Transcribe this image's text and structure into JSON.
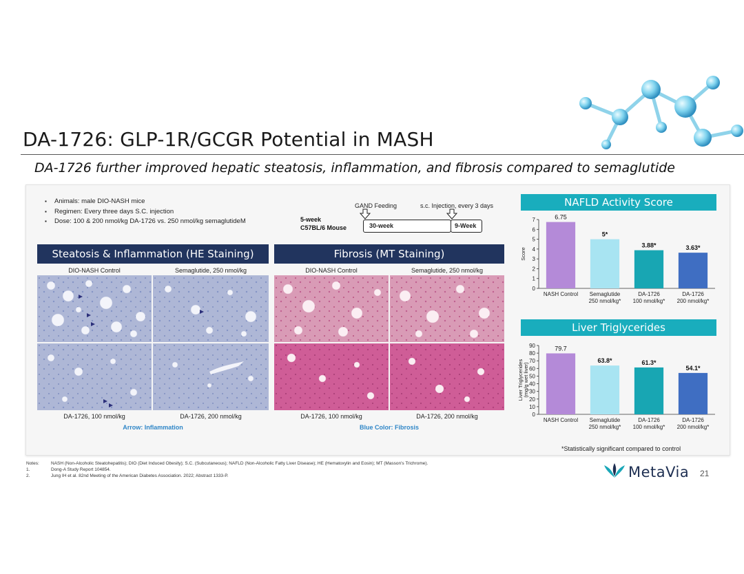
{
  "title": "DA-1726: GLP-1R/GCGR Potential in MASH",
  "subtitle": "DA-1726 further improved hepatic steatosis, inflammation, and fibrosis compared to semaglutide",
  "study_bullets": [
    "Animals: male DIO-NASH mice",
    "Regimen: Every three days S.C. injection",
    "Dose: 100 & 200 nmol/kg DA-1726 vs. 250 nmol/kg semaglutideM"
  ],
  "timeline": {
    "gand_feeding": "GAND Feeding",
    "injection": "s.c. Injection, every 3 days",
    "mouse_line1": "5-week",
    "mouse_line2": "C57BL/6 Mouse",
    "phase1": "30-week",
    "phase2": "9-Week"
  },
  "he_panel": {
    "header": "Steatosis & Inflammation (HE Staining)",
    "labels": [
      "DIO-NASH Control",
      "Semaglutide, 250 nmol/kg",
      "DA-1726, 100 nmol/kg",
      "DA-1726, 200 nmol/kg"
    ],
    "note": "Arrow: Inflammation"
  },
  "mt_panel": {
    "header": "Fibrosis (MT Staining)",
    "labels": [
      "DIO-NASH Control",
      "Semaglutide, 250 nmol/kg",
      "DA-1726, 100 nmol/kg",
      "DA-1726, 200 nmol/kg"
    ],
    "note": "Blue Color: Fibrosis"
  },
  "chart_data": [
    {
      "type": "bar",
      "title": "NAFLD Activity Score",
      "ylabel": "Score",
      "ylim": [
        0,
        7
      ],
      "yticks": [
        0,
        1,
        2,
        3,
        4,
        5,
        6,
        7
      ],
      "categories": [
        [
          "NASH Control"
        ],
        [
          "Semaglutide",
          "250 nmol/kg*"
        ],
        [
          "DA-1726",
          "100 nmol/kg*"
        ],
        [
          "DA-1726",
          "200 nmol/kg*"
        ]
      ],
      "values": [
        6.75,
        5,
        3.88,
        3.63
      ],
      "value_labels": [
        "6.75",
        "5*",
        "3.88*",
        "3.63*"
      ],
      "colors": [
        "#b48ad8",
        "#a8e4f2",
        "#18a6b3",
        "#3f6ec2"
      ],
      "grid": false
    },
    {
      "type": "bar",
      "title": "Liver Triglycerides",
      "ylabel": "Liver Triglycerides (mg/g wet liver)",
      "ylabel_lines": [
        "Liver Triglycerides",
        "(mg/g wet liver)"
      ],
      "ylim": [
        0,
        90
      ],
      "yticks": [
        0,
        10,
        20,
        30,
        40,
        50,
        60,
        70,
        80,
        90
      ],
      "categories": [
        [
          "NASH Control"
        ],
        [
          "Semaglutide",
          "250 nmol/kg*"
        ],
        [
          "DA-1726",
          "100 nmol/kg*"
        ],
        [
          "DA-1726",
          "200 nmol/kg*"
        ]
      ],
      "values": [
        79.7,
        63.8,
        61.3,
        54.1
      ],
      "value_labels": [
        "79.7",
        "63.8*",
        "61.3*",
        "54.1*"
      ],
      "colors": [
        "#b48ad8",
        "#a8e4f2",
        "#18a6b3",
        "#3f6ec2"
      ],
      "grid": false
    }
  ],
  "significance_note": "*Statistically significant compared to control",
  "notes": [
    {
      "key": "Notes:",
      "text": "NASH (Non-Alcoholic Steatohepatitis); DIO (Diet Induced Obesity); S.C. (Subcutaneous); NAFLD (Non-Alcoholic Fatty Liver Disease); HE (Hematoxylin and Eosin); MT (Masson's Trichrome)."
    },
    {
      "key": "1.",
      "text": "Dong-A Study Report 104854."
    },
    {
      "key": "2.",
      "text": "Jung IH et al. 82nd Meeting of the American Diabetes Association. 2022; Abstract 1333-P."
    }
  ],
  "logo_text": "MetaVia",
  "page_number": "21",
  "colors": {
    "navy_header": "#21345e",
    "teal_header": "#19adbd",
    "arrow_note": "#2f86c7"
  }
}
